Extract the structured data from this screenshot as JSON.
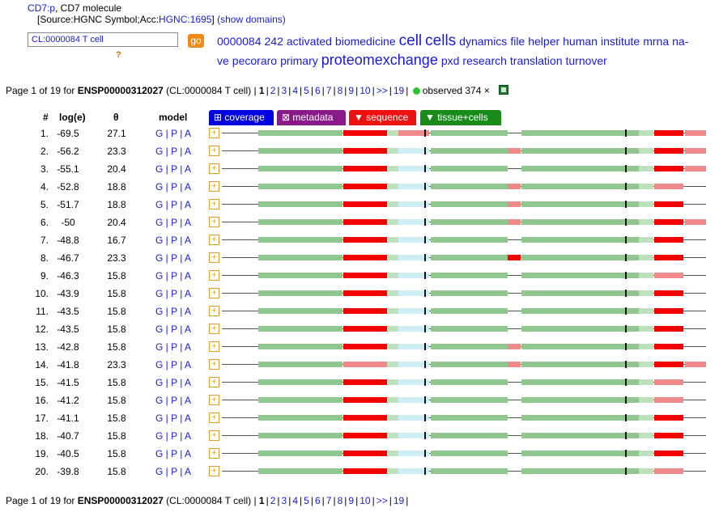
{
  "header": {
    "gene_link": "CD7:p",
    "gene_desc": ", CD7 molecule",
    "source_prefix": "[Source:HGNC Symbol;Acc:",
    "source_acc": "HGNC:1695",
    "source_suffix": "]",
    "show_domains": "(show domains)"
  },
  "search": {
    "value": "CL:0000084 T cell",
    "go_label": "go",
    "help": "?"
  },
  "tag_cloud": [
    "0000084",
    "242",
    "activated",
    "biomedicine",
    "cell",
    "cells",
    "dynamics",
    "file",
    "helper",
    "human",
    "institute",
    "mrna",
    "na-ve",
    "pecoraro",
    "primary",
    "proteomexchange",
    "pxd",
    "research",
    "translation",
    "turnover"
  ],
  "pager": {
    "prefix": "Page 1 of 19 for ",
    "protein": "ENSP00000312027",
    "context": " (CL:0000084 T cell) |",
    "pages": [
      "1",
      "2",
      "3",
      "4",
      "5",
      "6",
      "7",
      "8",
      "9",
      "10",
      ">>",
      "19"
    ],
    "observed": "observed 374 ×"
  },
  "columns": {
    "num": "#",
    "loge": "log(e)",
    "theta": "θ",
    "model": "model"
  },
  "tabs": {
    "coverage": "⊞ coverage",
    "metadata": "⊠ metadata",
    "sequence": "▼ sequence",
    "tissue": "▼ tissue+cells"
  },
  "colors": {
    "coverage": "#0000e0",
    "metadata": "#8a1a8a",
    "sequence": "#ee1111",
    "tissue": "#1a8a1a"
  },
  "model_links": "G | P | A",
  "rows": [
    {
      "n": "1.",
      "loge": "-69.5",
      "theta": "27.1"
    },
    {
      "n": "2.",
      "loge": "-56.2",
      "theta": "23.3"
    },
    {
      "n": "3.",
      "loge": "-55.1",
      "theta": "20.4"
    },
    {
      "n": "4.",
      "loge": "-52.8",
      "theta": "18.8"
    },
    {
      "n": "5.",
      "loge": "-51.7",
      "theta": "18.8"
    },
    {
      "n": "6.",
      "loge": "-50",
      "theta": "20.4"
    },
    {
      "n": "7.",
      "loge": "-48.8",
      "theta": "16.7"
    },
    {
      "n": "8.",
      "loge": "-46.7",
      "theta": "23.3"
    },
    {
      "n": "9.",
      "loge": "-46.3",
      "theta": "15.8"
    },
    {
      "n": "10.",
      "loge": "-43.9",
      "theta": "15.8"
    },
    {
      "n": "11.",
      "loge": "-43.5",
      "theta": "15.8"
    },
    {
      "n": "12.",
      "loge": "-43.5",
      "theta": "15.8"
    },
    {
      "n": "13.",
      "loge": "-42.8",
      "theta": "15.8"
    },
    {
      "n": "14.",
      "loge": "-41.8",
      "theta": "23.3"
    },
    {
      "n": "15.",
      "loge": "-41.5",
      "theta": "15.8"
    },
    {
      "n": "16.",
      "loge": "-41.2",
      "theta": "15.8"
    },
    {
      "n": "17.",
      "loge": "-41.1",
      "theta": "15.8"
    },
    {
      "n": "18.",
      "loge": "-40.7",
      "theta": "15.8"
    },
    {
      "n": "19.",
      "loge": "-40.5",
      "theta": "15.8"
    },
    {
      "n": "20.",
      "loge": "-39.8",
      "theta": "15.8"
    }
  ]
}
